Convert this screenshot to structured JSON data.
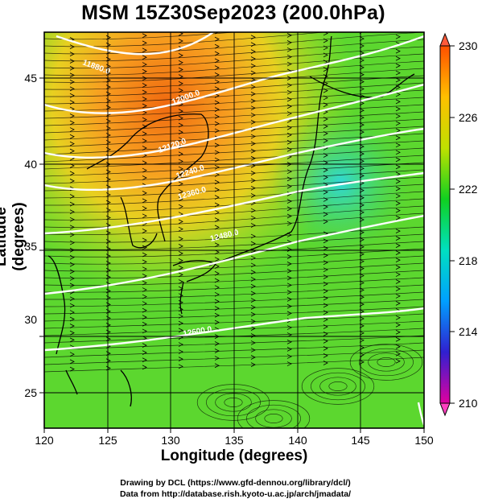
{
  "title": "MSM 15Z30Sep2023 (200.0hPa)",
  "axes": {
    "xlabel": "Longitude (degrees)",
    "ylabel": "Latitude  (degrees)",
    "x_ticks": [
      "120",
      "125",
      "130",
      "135",
      "140",
      "145",
      "150"
    ],
    "y_ticks": [
      "25",
      "30",
      "35",
      "40",
      "45"
    ],
    "xlim": [
      120,
      150
    ],
    "ylim": [
      22.5,
      48
    ]
  },
  "colorbar": {
    "ticks": [
      "230",
      "226",
      "222",
      "218",
      "214",
      "210"
    ],
    "range": [
      210,
      230
    ],
    "colors": [
      "#e000a0",
      "#3020d0",
      "#00a0ff",
      "#00e0c0",
      "#10d020",
      "#c0e000",
      "#ffc000",
      "#ff5000"
    ]
  },
  "contours": {
    "labels": [
      "11880.0",
      "12000.0",
      "12120.0",
      "12240.0",
      "12360.0",
      "12480.0",
      "12600.0"
    ]
  },
  "credits": {
    "line1": "Drawing by DCL (https://www.gfd-dennou.org/library/dcl/)",
    "line2": "Data from http://database.rish.kyoto-u.ac.jp/arch/jmadata/"
  }
}
